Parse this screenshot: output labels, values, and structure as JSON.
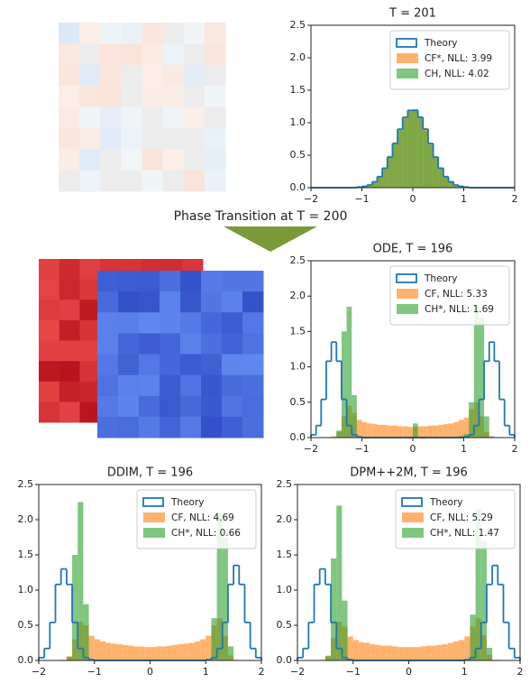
{
  "figure": {
    "caption": "Phase Transition at T = 200"
  },
  "chart_data": [
    {
      "type": "histogram",
      "title": "T = 201",
      "legend": "upper right",
      "bins": [
        -2,
        -1.9,
        -1.8,
        -1.7,
        -1.6,
        -1.5,
        -1.4,
        -1.3,
        -1.2,
        -1.1,
        -1,
        -0.9,
        -0.8,
        -0.7,
        -0.6,
        -0.5,
        -0.4,
        -0.3,
        -0.2,
        -0.1,
        0,
        0.1,
        0.2,
        0.3,
        0.4,
        0.5,
        0.6,
        0.7,
        0.8,
        0.9,
        1,
        1.1,
        1.2,
        1.3,
        1.4,
        1.5,
        1.6,
        1.7,
        1.8,
        1.9,
        2
      ],
      "xlim": [
        -2,
        2
      ],
      "xticks": [
        {
          "value": -2,
          "label": "−2"
        },
        {
          "value": -1,
          "label": "−1"
        },
        0,
        1,
        2
      ],
      "ylim": [
        0,
        2.5
      ],
      "yticks": [
        {
          "value": 0,
          "label": "0.0"
        },
        {
          "value": 0.5,
          "label": "0.5"
        },
        {
          "value": 1,
          "label": "1.0"
        },
        {
          "value": 1.5,
          "label": "1.5"
        },
        {
          "value": 2,
          "label": "2.0"
        },
        {
          "value": 2.5,
          "label": "2.5"
        }
      ],
      "series": [
        {
          "name": "Theory",
          "color": "#1f77b4",
          "histtype": "step",
          "values": [
            0,
            0,
            0,
            0,
            0,
            0,
            0,
            0,
            0,
            0.01,
            0.02,
            0.04,
            0.09,
            0.17,
            0.3,
            0.47,
            0.68,
            0.9,
            1.08,
            1.19,
            1.19,
            1.08,
            0.9,
            0.68,
            0.47,
            0.3,
            0.17,
            0.09,
            0.04,
            0.02,
            0.01,
            0,
            0,
            0,
            0,
            0,
            0,
            0,
            0,
            0
          ]
        },
        {
          "name": "CF*, NLL: 3.99",
          "color": "#ff7f0e",
          "histtype": "bar",
          "values": [
            0,
            0,
            0,
            0,
            0,
            0,
            0,
            0,
            0,
            0.01,
            0.02,
            0.05,
            0.1,
            0.18,
            0.31,
            0.48,
            0.7,
            0.88,
            1.1,
            1.17,
            1.21,
            1.06,
            0.92,
            0.66,
            0.46,
            0.31,
            0.16,
            0.08,
            0.04,
            0.02,
            0.01,
            0,
            0,
            0,
            0,
            0,
            0,
            0,
            0,
            0
          ]
        },
        {
          "name": "CH, NLL: 4.02",
          "color": "#2ca02c",
          "histtype": "bar",
          "values": [
            0,
            0,
            0,
            0,
            0,
            0,
            0,
            0,
            0,
            0.01,
            0.02,
            0.04,
            0.09,
            0.16,
            0.29,
            0.49,
            0.67,
            0.91,
            1.06,
            1.2,
            1.18,
            1.1,
            0.88,
            0.69,
            0.48,
            0.29,
            0.18,
            0.1,
            0.04,
            0.02,
            0.01,
            0,
            0,
            0,
            0,
            0,
            0,
            0,
            0,
            0
          ]
        }
      ]
    },
    {
      "type": "histogram",
      "title": "ODE, T = 196",
      "legend": "upper right",
      "bins": [
        -2,
        -1.9,
        -1.8,
        -1.7,
        -1.6,
        -1.5,
        -1.4,
        -1.3,
        -1.2,
        -1.1,
        -1,
        -0.9,
        -0.8,
        -0.7,
        -0.6,
        -0.5,
        -0.4,
        -0.3,
        -0.2,
        -0.1,
        0,
        0.1,
        0.2,
        0.3,
        0.4,
        0.5,
        0.6,
        0.7,
        0.8,
        0.9,
        1,
        1.1,
        1.2,
        1.3,
        1.4,
        1.5,
        1.6,
        1.7,
        1.8,
        1.9,
        2
      ],
      "xlim": [
        -2,
        2
      ],
      "xticks": [
        {
          "value": -2,
          "label": "−2"
        },
        {
          "value": -1,
          "label": "−1"
        },
        0,
        1,
        2
      ],
      "ylim": [
        0,
        2.5
      ],
      "yticks": [
        {
          "value": 0,
          "label": "0.0"
        },
        {
          "value": 0.5,
          "label": "0.5"
        },
        {
          "value": 1,
          "label": "1.0"
        },
        {
          "value": 1.5,
          "label": "1.5"
        },
        {
          "value": 2,
          "label": "2.0"
        },
        {
          "value": 2.5,
          "label": "2.5"
        }
      ],
      "series": [
        {
          "name": "Theory",
          "color": "#1f77b4",
          "histtype": "step",
          "values": [
            0.04,
            0.17,
            0.54,
            1.08,
            1.35,
            1.08,
            0.54,
            0.17,
            0.04,
            0.01,
            0,
            0,
            0,
            0,
            0,
            0,
            0,
            0,
            0,
            0,
            0,
            0,
            0,
            0,
            0,
            0,
            0,
            0,
            0,
            0,
            0.01,
            0.04,
            0.17,
            0.54,
            1.08,
            1.35,
            1.08,
            0.54,
            0.17,
            0.04
          ]
        },
        {
          "name": "CF, NLL: 5.33",
          "color": "#ff7f0e",
          "histtype": "bar",
          "values": [
            0,
            0,
            0,
            0,
            0.02,
            0.08,
            0.3,
            0.45,
            0.35,
            0.25,
            0.22,
            0.2,
            0.19,
            0.18,
            0.18,
            0.17,
            0.17,
            0.16,
            0.16,
            0.15,
            0.15,
            0.16,
            0.16,
            0.17,
            0.17,
            0.18,
            0.19,
            0.2,
            0.22,
            0.25,
            0.28,
            0.4,
            0.5,
            0.3,
            0.08,
            0.02,
            0,
            0,
            0,
            0
          ]
        },
        {
          "name": "CH*, NLL: 1.69",
          "color": "#2ca02c",
          "histtype": "bar",
          "values": [
            0,
            0,
            0,
            0,
            0,
            0.1,
            1.5,
            1.85,
            0.6,
            0.02,
            0,
            0,
            0,
            0,
            0,
            0,
            0,
            0,
            0,
            0,
            0.2,
            0,
            0,
            0,
            0,
            0,
            0,
            0,
            0,
            0.02,
            0.05,
            0.5,
            1.85,
            1.7,
            0.3,
            0.01,
            0,
            0,
            0,
            0
          ]
        }
      ]
    },
    {
      "type": "histogram",
      "title": "DDIM, T = 196",
      "legend": "upper right",
      "bins": [
        -2,
        -1.9,
        -1.8,
        -1.7,
        -1.6,
        -1.5,
        -1.4,
        -1.3,
        -1.2,
        -1.1,
        -1,
        -0.9,
        -0.8,
        -0.7,
        -0.6,
        -0.5,
        -0.4,
        -0.3,
        -0.2,
        -0.1,
        0,
        0.1,
        0.2,
        0.3,
        0.4,
        0.5,
        0.6,
        0.7,
        0.8,
        0.9,
        1,
        1.1,
        1.2,
        1.3,
        1.4,
        1.5,
        1.6,
        1.7,
        1.8,
        1.9,
        2
      ],
      "xlim": [
        -2,
        2
      ],
      "xticks": [
        {
          "value": -2,
          "label": "−2"
        },
        {
          "value": -1,
          "label": "−1"
        },
        0,
        1,
        2
      ],
      "ylim": [
        0,
        2.5
      ],
      "yticks": [
        {
          "value": 0,
          "label": "0.0"
        },
        {
          "value": 0.5,
          "label": "0.5"
        },
        {
          "value": 1,
          "label": "1.0"
        },
        {
          "value": 1.5,
          "label": "1.5"
        },
        {
          "value": 2,
          "label": "2.0"
        },
        {
          "value": 2.5,
          "label": "2.5"
        }
      ],
      "series": [
        {
          "name": "Theory",
          "color": "#1f77b4",
          "histtype": "step",
          "values": [
            0.04,
            0.17,
            0.54,
            1.08,
            1.3,
            1.08,
            0.54,
            0.17,
            0.04,
            0.01,
            0,
            0,
            0,
            0,
            0,
            0,
            0,
            0,
            0,
            0,
            0,
            0,
            0,
            0,
            0,
            0,
            0,
            0,
            0,
            0,
            0.01,
            0.04,
            0.17,
            0.54,
            1.08,
            1.35,
            1.08,
            0.54,
            0.17,
            0.04
          ]
        },
        {
          "name": "CF, NLL: 4.69",
          "color": "#ff7f0e",
          "histtype": "bar",
          "values": [
            0,
            0,
            0,
            0,
            0.01,
            0.06,
            0.3,
            0.55,
            0.5,
            0.35,
            0.3,
            0.27,
            0.25,
            0.24,
            0.23,
            0.22,
            0.21,
            0.2,
            0.2,
            0.19,
            0.19,
            0.2,
            0.2,
            0.21,
            0.22,
            0.23,
            0.24,
            0.25,
            0.27,
            0.3,
            0.35,
            0.5,
            0.6,
            0.35,
            0.07,
            0.01,
            0,
            0,
            0,
            0
          ]
        },
        {
          "name": "CH*, NLL: 0.66",
          "color": "#2ca02c",
          "histtype": "bar",
          "values": [
            0,
            0,
            0,
            0,
            0,
            0.05,
            1.5,
            2.25,
            0.8,
            0.02,
            0,
            0,
            0,
            0,
            0,
            0,
            0,
            0,
            0,
            0,
            0,
            0,
            0,
            0,
            0,
            0,
            0,
            0,
            0,
            0,
            0.02,
            0.6,
            2.1,
            1.75,
            0.2,
            0,
            0,
            0,
            0,
            0
          ]
        }
      ]
    },
    {
      "type": "histogram",
      "title": "DPM++2M, T = 196",
      "legend": "upper right",
      "bins": [
        -2,
        -1.9,
        -1.8,
        -1.7,
        -1.6,
        -1.5,
        -1.4,
        -1.3,
        -1.2,
        -1.1,
        -1,
        -0.9,
        -0.8,
        -0.7,
        -0.6,
        -0.5,
        -0.4,
        -0.3,
        -0.2,
        -0.1,
        0,
        0.1,
        0.2,
        0.3,
        0.4,
        0.5,
        0.6,
        0.7,
        0.8,
        0.9,
        1,
        1.1,
        1.2,
        1.3,
        1.4,
        1.5,
        1.6,
        1.7,
        1.8,
        1.9,
        2
      ],
      "xlim": [
        -2,
        2
      ],
      "xticks": [
        {
          "value": -2,
          "label": "−2"
        },
        {
          "value": -1,
          "label": "−1"
        },
        0,
        1,
        2
      ],
      "ylim": [
        0,
        2.5
      ],
      "yticks": [
        {
          "value": 0,
          "label": "0.0"
        },
        {
          "value": 0.5,
          "label": "0.5"
        },
        {
          "value": 1,
          "label": "1.0"
        },
        {
          "value": 1.5,
          "label": "1.5"
        },
        {
          "value": 2,
          "label": "2.0"
        },
        {
          "value": 2.5,
          "label": "2.5"
        }
      ],
      "series": [
        {
          "name": "Theory",
          "color": "#1f77b4",
          "histtype": "step",
          "values": [
            0.04,
            0.17,
            0.54,
            1.08,
            1.3,
            1.08,
            0.54,
            0.17,
            0.04,
            0.01,
            0,
            0,
            0,
            0,
            0,
            0,
            0,
            0,
            0,
            0,
            0,
            0,
            0,
            0,
            0,
            0,
            0,
            0,
            0,
            0,
            0.01,
            0.04,
            0.17,
            0.54,
            1.08,
            1.35,
            1.08,
            0.54,
            0.17,
            0.04
          ]
        },
        {
          "name": "CF, NLL: 5.29",
          "color": "#ff7f0e",
          "histtype": "bar",
          "values": [
            0,
            0,
            0,
            0,
            0.01,
            0.07,
            0.32,
            0.55,
            0.48,
            0.34,
            0.29,
            0.26,
            0.25,
            0.23,
            0.22,
            0.21,
            0.21,
            0.2,
            0.19,
            0.19,
            0.19,
            0.19,
            0.2,
            0.21,
            0.21,
            0.22,
            0.23,
            0.25,
            0.27,
            0.29,
            0.34,
            0.48,
            0.6,
            0.36,
            0.08,
            0.01,
            0,
            0,
            0,
            0
          ]
        },
        {
          "name": "CH*, NLL: 1.47",
          "color": "#2ca02c",
          "histtype": "bar",
          "values": [
            0,
            0,
            0,
            0,
            0,
            0.06,
            1.45,
            2.2,
            0.85,
            0.02,
            0,
            0,
            0,
            0,
            0,
            0,
            0,
            0,
            0,
            0,
            0,
            0,
            0,
            0,
            0,
            0,
            0,
            0,
            0,
            0,
            0.02,
            0.65,
            2.15,
            1.7,
            0.18,
            0,
            0,
            0,
            0,
            0
          ]
        }
      ]
    }
  ]
}
